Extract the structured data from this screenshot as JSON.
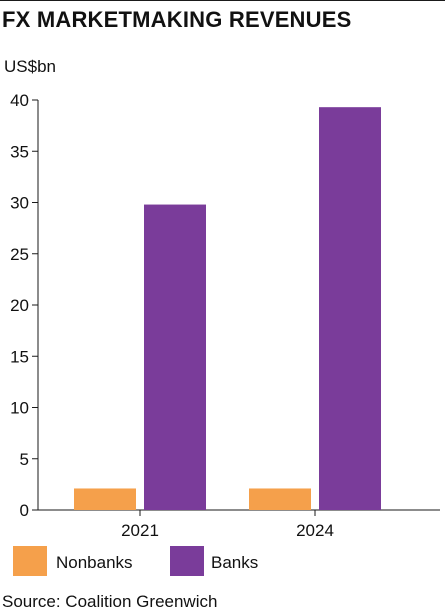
{
  "title": "FX MARKETMAKING REVENUES",
  "source": "Source: Coalition Greenwich",
  "chart_data": {
    "type": "bar",
    "title": "FX MARKETMAKING REVENUES",
    "ylabel": "US$bn",
    "xlabel": "",
    "categories": [
      "2021",
      "2024"
    ],
    "series": [
      {
        "name": "Nonbanks",
        "color": "#f5a04b",
        "values": [
          2.1,
          2.1
        ]
      },
      {
        "name": "Banks",
        "color": "#7a3c9a",
        "values": [
          29.8,
          39.3
        ]
      }
    ],
    "ylim": [
      0,
      40
    ],
    "yticks": [
      0,
      5,
      10,
      15,
      20,
      25,
      30,
      35,
      40
    ],
    "grid": false,
    "legend": "bottom-left"
  }
}
